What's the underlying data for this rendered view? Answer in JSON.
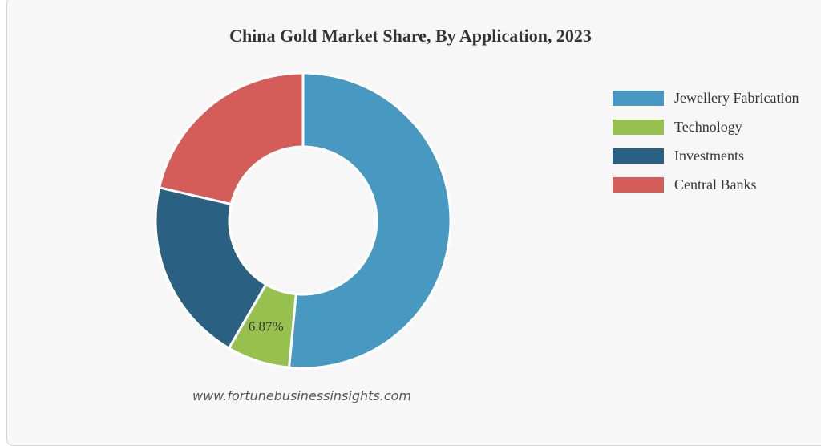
{
  "chart_data": {
    "type": "pie",
    "title": "China Gold Market Share, By Application, 2023",
    "donut": true,
    "categories": [
      "Jewellery Fabrication",
      "Technology",
      "Investments",
      "Central Banks"
    ],
    "values": [
      51.5,
      6.87,
      20.2,
      21.4
    ],
    "colors": [
      "#4899c1",
      "#97c14e",
      "#2a6183",
      "#d45d59"
    ],
    "data_labels": [
      "",
      "6.87%",
      "",
      ""
    ],
    "legend_position": "right"
  },
  "footer": {
    "source": "www.fortunebusinessinsights.com"
  }
}
